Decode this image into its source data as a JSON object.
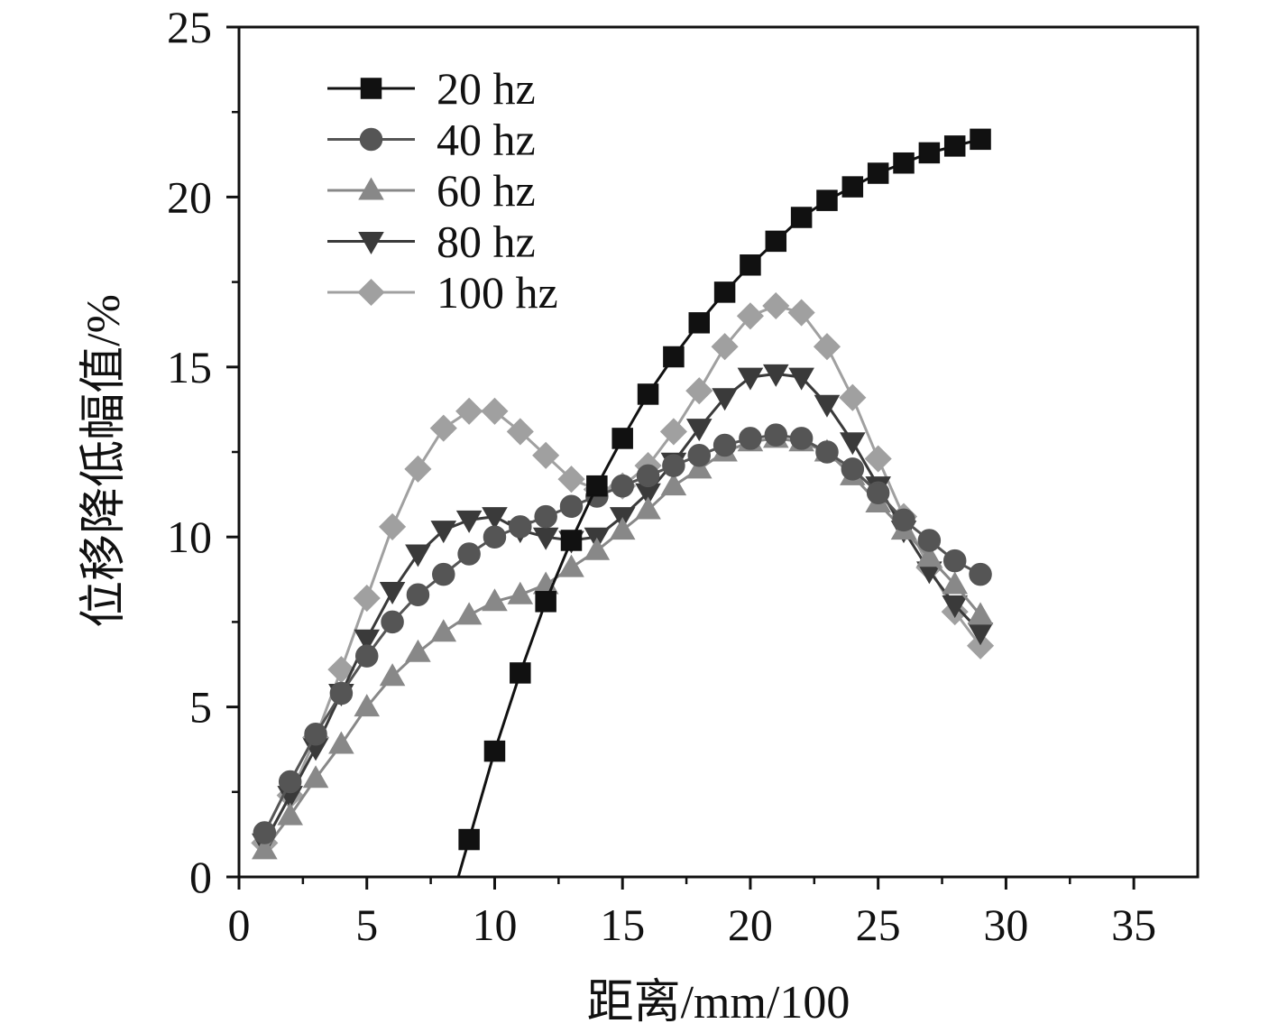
{
  "chart_data": {
    "type": "line",
    "title": "",
    "xlabel": "距离/mm/100",
    "ylabel": "位移降低幅值/%",
    "xlim": [
      0,
      37.5
    ],
    "ylim": [
      0,
      25
    ],
    "xticks": [
      0,
      5,
      10,
      15,
      20,
      25,
      30,
      35
    ],
    "yticks": [
      0,
      5,
      10,
      15,
      20,
      25
    ],
    "grid": false,
    "legend_position": "top-left",
    "series": [
      {
        "name": "20 hz",
        "marker": "square",
        "color": "#111111",
        "x": [
          9,
          10,
          11,
          12,
          13,
          14,
          15,
          16,
          17,
          18,
          19,
          20,
          21,
          22,
          23,
          24,
          25,
          26,
          27,
          28,
          29
        ],
        "y": [
          1.1,
          3.7,
          6.0,
          8.1,
          9.9,
          11.5,
          12.9,
          14.2,
          15.3,
          16.3,
          17.2,
          18.0,
          18.7,
          19.4,
          19.9,
          20.3,
          20.7,
          21.0,
          21.3,
          21.5,
          21.7
        ]
      },
      {
        "name": "40 hz",
        "marker": "circle",
        "color": "#555555",
        "x": [
          1,
          2,
          3,
          4,
          5,
          6,
          7,
          8,
          9,
          10,
          11,
          12,
          13,
          14,
          15,
          16,
          17,
          18,
          19,
          20,
          21,
          22,
          23,
          24,
          25,
          26,
          27,
          28,
          29
        ],
        "y": [
          1.3,
          2.8,
          4.2,
          5.4,
          6.5,
          7.5,
          8.3,
          8.9,
          9.5,
          10.0,
          10.3,
          10.6,
          10.9,
          11.2,
          11.5,
          11.8,
          12.1,
          12.4,
          12.7,
          12.9,
          13.0,
          12.9,
          12.5,
          12.0,
          11.3,
          10.5,
          9.9,
          9.3,
          8.9
        ]
      },
      {
        "name": "60 hz",
        "marker": "triangle-up",
        "color": "#888888",
        "x": [
          1,
          2,
          3,
          4,
          5,
          6,
          7,
          8,
          9,
          10,
          11,
          12,
          13,
          14,
          15,
          16,
          17,
          18,
          19,
          20,
          21,
          22,
          23,
          24,
          25,
          26,
          27,
          28,
          29
        ],
        "y": [
          0.8,
          1.8,
          2.9,
          3.9,
          5.0,
          5.9,
          6.6,
          7.2,
          7.7,
          8.1,
          8.3,
          8.6,
          9.1,
          9.6,
          10.2,
          10.8,
          11.5,
          12.0,
          12.5,
          12.8,
          12.9,
          12.8,
          12.5,
          11.8,
          11.0,
          10.2,
          9.4,
          8.6,
          7.7
        ]
      },
      {
        "name": "80 hz",
        "marker": "triangle-down",
        "color": "#3a3a3a",
        "x": [
          1,
          2,
          3,
          4,
          5,
          6,
          7,
          8,
          9,
          10,
          11,
          12,
          13,
          14,
          15,
          16,
          17,
          18,
          19,
          20,
          21,
          22,
          23,
          24,
          25,
          26,
          27,
          28,
          29
        ],
        "y": [
          1.0,
          2.4,
          3.8,
          5.4,
          7.0,
          8.4,
          9.5,
          10.2,
          10.5,
          10.6,
          10.2,
          10.0,
          9.9,
          10.0,
          10.6,
          11.3,
          12.2,
          13.2,
          14.1,
          14.7,
          14.8,
          14.7,
          13.9,
          12.8,
          11.5,
          10.2,
          9.0,
          8.0,
          7.2
        ]
      },
      {
        "name": "100 hz",
        "marker": "diamond",
        "color": "#a0a0a0",
        "x": [
          1,
          2,
          3,
          4,
          5,
          6,
          7,
          8,
          9,
          10,
          11,
          12,
          13,
          14,
          15,
          16,
          17,
          18,
          19,
          20,
          21,
          22,
          23,
          24,
          25,
          26,
          27,
          28,
          29
        ],
        "y": [
          1.0,
          2.4,
          4.1,
          6.1,
          8.2,
          10.3,
          12.0,
          13.2,
          13.7,
          13.7,
          13.1,
          12.4,
          11.7,
          11.4,
          11.5,
          12.1,
          13.1,
          14.3,
          15.6,
          16.5,
          16.8,
          16.6,
          15.6,
          14.1,
          12.3,
          10.6,
          9.1,
          7.8,
          6.8
        ]
      }
    ]
  }
}
